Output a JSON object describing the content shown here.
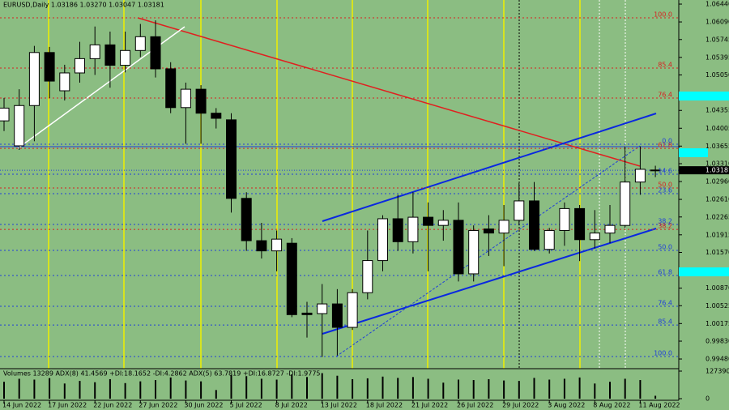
{
  "chart_data": {
    "type": "candlestick",
    "title": "EURUSD,Daily  1.03186 1.03270 1.03047 1.03181",
    "categories": [
      "14 Jun 2022",
      null,
      null,
      "17 Jun 2022",
      null,
      null,
      "22 Jun 2022",
      null,
      null,
      "27 Jun 2022",
      null,
      null,
      "30 Jun 2022",
      null,
      null,
      "5 Jul 2022",
      null,
      null,
      "8 Jul 2022",
      null,
      null,
      "13 Jul 2022",
      null,
      null,
      "18 Jul 2022",
      null,
      null,
      "21 Jul 2022",
      null,
      null,
      "26 Jul 2022",
      null,
      null,
      "29 Jul 2022",
      null,
      null,
      "3 Aug 2022",
      null,
      null,
      "8 Aug 2022",
      null,
      null,
      "11 Aug 2022",
      null
    ],
    "open": [
      1.0415,
      1.0366,
      1.0445,
      1.0549,
      1.0474,
      1.0509,
      1.0537,
      1.0564,
      1.0524,
      1.0553,
      1.058,
      1.0517,
      1.0441,
      1.0477,
      1.043,
      1.0417,
      1.0263,
      1.018,
      1.016,
      1.0175,
      1.0038,
      1.0037,
      1.0056,
      1.001,
      1.0078,
      1.0141,
      1.0223,
      1.0178,
      1.0226,
      1.021,
      1.022,
      1.0115,
      1.0203,
      1.0195,
      1.022,
      1.0258,
      1.0163,
      1.02,
      1.0243,
      1.0182,
      1.0195,
      1.021,
      1.0295,
      1.03186
    ],
    "high": [
      1.046,
      1.0477,
      1.0562,
      1.056,
      1.0525,
      1.057,
      1.06,
      1.059,
      1.059,
      1.0605,
      1.0612,
      1.053,
      1.049,
      1.0485,
      1.044,
      1.043,
      1.0275,
      1.0215,
      1.02,
      1.0185,
      1.006,
      1.0095,
      1.0085,
      1.0085,
      1.02,
      1.023,
      1.027,
      1.0275,
      1.0255,
      1.024,
      1.0255,
      1.021,
      1.023,
      1.025,
      1.0293,
      1.0295,
      1.0205,
      1.0255,
      1.025,
      1.024,
      1.025,
      1.0365,
      1.0365,
      1.0327
    ],
    "low": [
      1.0395,
      1.0358,
      1.0375,
      1.046,
      1.0455,
      1.049,
      1.0505,
      1.048,
      1.051,
      1.054,
      1.05,
      1.043,
      1.037,
      1.037,
      1.04,
      1.0235,
      1.016,
      1.0145,
      1.012,
      1.003,
      0.999,
      0.9952,
      0.9955,
      1.0005,
      1.0065,
      1.012,
      1.016,
      1.0155,
      1.012,
      1.018,
      1.01,
      1.01,
      1.015,
      1.013,
      1.021,
      1.016,
      1.0155,
      1.017,
      1.014,
      1.0165,
      1.0175,
      1.0205,
      1.027,
      1.03047
    ],
    "close": [
      1.044,
      1.0445,
      1.0549,
      1.0493,
      1.0509,
      1.0537,
      1.0564,
      1.0524,
      1.0553,
      1.058,
      1.0517,
      1.0441,
      1.0477,
      1.043,
      1.042,
      1.0263,
      1.018,
      1.016,
      1.0183,
      1.0035,
      1.0035,
      1.0056,
      1.001,
      1.0078,
      1.0141,
      1.0223,
      1.0178,
      1.0226,
      1.021,
      1.022,
      1.0115,
      1.02,
      1.0195,
      1.022,
      1.0258,
      1.0163,
      1.02,
      1.0243,
      1.0182,
      1.0195,
      1.021,
      1.0295,
      1.032,
      1.03181
    ],
    "ylim": [
      0.9929,
      1.0652
    ],
    "yticks": [
      {
        "value": 1.0644,
        "label": "1.06440"
      },
      {
        "value": 1.0609,
        "label": "1.06090"
      },
      {
        "value": 1.05745,
        "label": "1.05745"
      },
      {
        "value": 1.05395,
        "label": "1.05395"
      },
      {
        "value": 1.0505,
        "label": "1.05050"
      },
      {
        "value": 1.04355,
        "label": "1.04355"
      },
      {
        "value": 1.04005,
        "label": "1.04005"
      },
      {
        "value": 1.03655,
        "label": "1.03655"
      },
      {
        "value": 1.0331,
        "label": "1.03310"
      },
      {
        "value": 1.0296,
        "label": "1.02960"
      },
      {
        "value": 1.0261,
        "label": "1.02610"
      },
      {
        "value": 1.02265,
        "label": "1.02265"
      },
      {
        "value": 1.01915,
        "label": "1.01915"
      },
      {
        "value": 1.0157,
        "label": "1.01570"
      },
      {
        "value": 1.0087,
        "label": "1.00870"
      },
      {
        "value": 1.00525,
        "label": "1.00525"
      },
      {
        "value": 1.00175,
        "label": "1.00175"
      },
      {
        "value": 0.9983,
        "label": "0.99830"
      },
      {
        "value": 0.9948,
        "label": "0.99480"
      }
    ],
    "current_price": {
      "value": 1.03181,
      "label": "1.03181"
    },
    "fib_levels": [
      {
        "level": "100.0",
        "price": 1.0617,
        "color": "#d82020"
      },
      {
        "level": "85.4",
        "price": 1.05185,
        "color": "#d82020"
      },
      {
        "level": "76.4",
        "price": 1.04597,
        "color": "#d82020"
      },
      {
        "level": "61.8",
        "price": 1.03611,
        "color": "#d82020"
      },
      {
        "level": "50.0",
        "price": 1.02833,
        "color": "#d82020"
      },
      {
        "level": "38.2",
        "price": 1.02022,
        "color": "#d82020"
      },
      {
        "level": "0.0",
        "price": 1.03691,
        "color": "#2040d8"
      },
      {
        "level": "14.6",
        "price": 1.03103,
        "color": "#2040d8"
      },
      {
        "level": "23.6",
        "price": 1.02722,
        "color": "#2040d8"
      },
      {
        "level": "38.2",
        "price": 1.02118,
        "color": "#2040d8"
      },
      {
        "level": "50.0",
        "price": 1.01609,
        "color": "#2040d8"
      },
      {
        "level": "61.8",
        "price": 1.01117,
        "color": "#2040d8"
      },
      {
        "level": "76.4",
        "price": 1.00513,
        "color": "#2040d8"
      },
      {
        "level": "85.4",
        "price": 1.00147,
        "color": "#2040d8"
      },
      {
        "level": "100.0",
        "price": 0.99528,
        "color": "#2040d8"
      }
    ],
    "indicator_title": "Volumes 13289  ADX(8) 41.4569 +DI:18.1652 -DI:4.2862  ADX(5) 63.7819 +DI:16.8727 -DI:1.9775",
    "volumes": [
      78000,
      92000,
      88000,
      95000,
      70000,
      82000,
      76000,
      90000,
      72000,
      80000,
      86000,
      98000,
      84000,
      80000,
      40000,
      110000,
      104000,
      92000,
      88000,
      112000,
      100000,
      118000,
      106000,
      90000,
      94000,
      102000,
      96000,
      100000,
      92000,
      74000,
      88000,
      86000,
      90000,
      84000,
      82000,
      96000,
      88000,
      92000,
      98000,
      70000,
      78000,
      92000,
      86000,
      13289
    ],
    "volume_ylim": [
      0,
      127390
    ],
    "volume_yticks": [
      127390,
      0
    ]
  }
}
